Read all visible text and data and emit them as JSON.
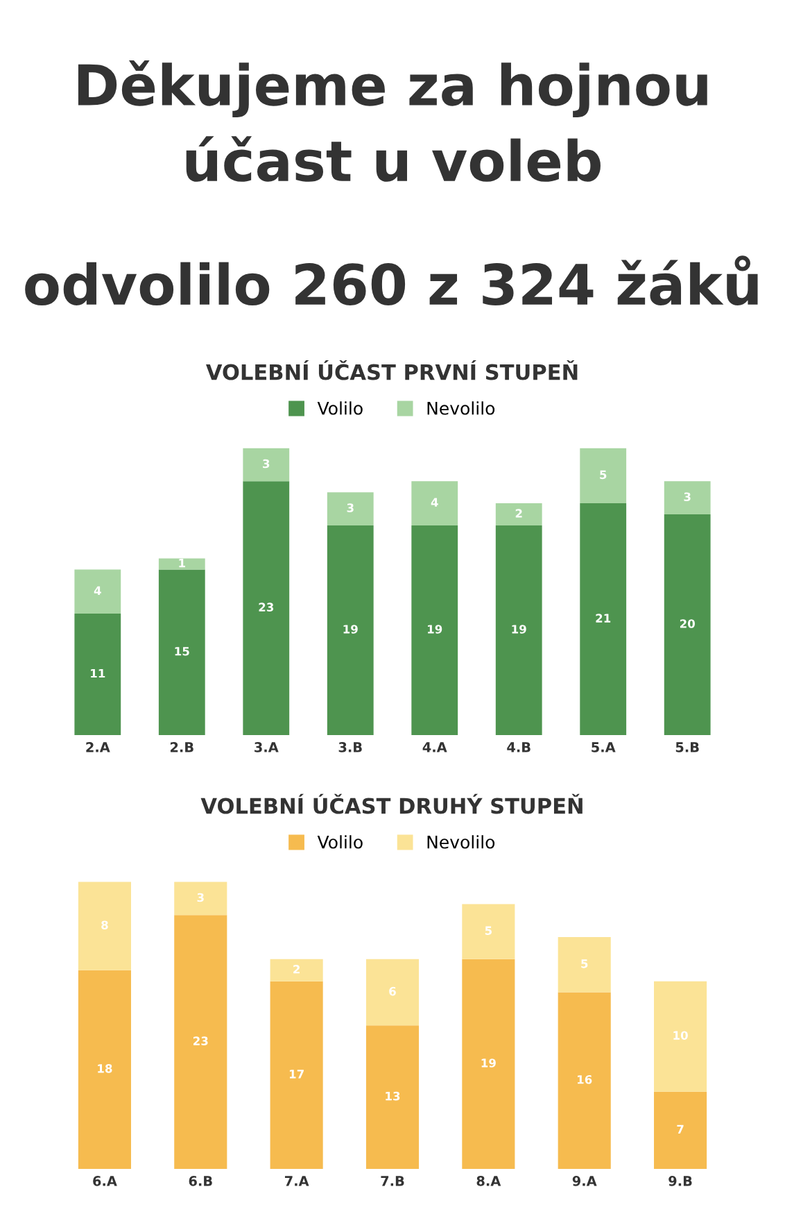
{
  "chart_data": [
    {
      "type": "other",
      "title": "Děkujeme za hojnou\núčast u voleb",
      "subtitle": "odvolilo 260 z 324 žáků"
    },
    {
      "type": "bar",
      "stacked": true,
      "title": "VOLEBNÍ ÚČAST PRVNÍ STUPEŇ",
      "categories": [
        "2.A",
        "2.B",
        "3.A",
        "3.B",
        "4.A",
        "4.B",
        "5.A",
        "5.B"
      ],
      "series": [
        {
          "name": "Volilo",
          "color": "#4e944f",
          "values": [
            11,
            15,
            23,
            19,
            19,
            19,
            21,
            20
          ]
        },
        {
          "name": "Nevolilo",
          "color": "#a8d5a2",
          "values": [
            4,
            1,
            3,
            3,
            4,
            2,
            5,
            3
          ]
        }
      ],
      "data_labels": true,
      "legend": "top",
      "grid": false
    },
    {
      "type": "bar",
      "stacked": true,
      "title": "VOLEBNÍ ÚČAST DRUHÝ STUPEŇ",
      "categories": [
        "6.A",
        "6.B",
        "7.A",
        "7.B",
        "8.A",
        "9.A",
        "9.B"
      ],
      "series": [
        {
          "name": "Volilo",
          "color": "#f6bb4f",
          "values": [
            18,
            23,
            17,
            13,
            19,
            16,
            7
          ]
        },
        {
          "name": "Nevolilo",
          "color": "#fbe396",
          "values": [
            8,
            3,
            2,
            6,
            5,
            5,
            10
          ]
        }
      ],
      "data_labels": true,
      "legend": "top",
      "grid": false
    }
  ]
}
